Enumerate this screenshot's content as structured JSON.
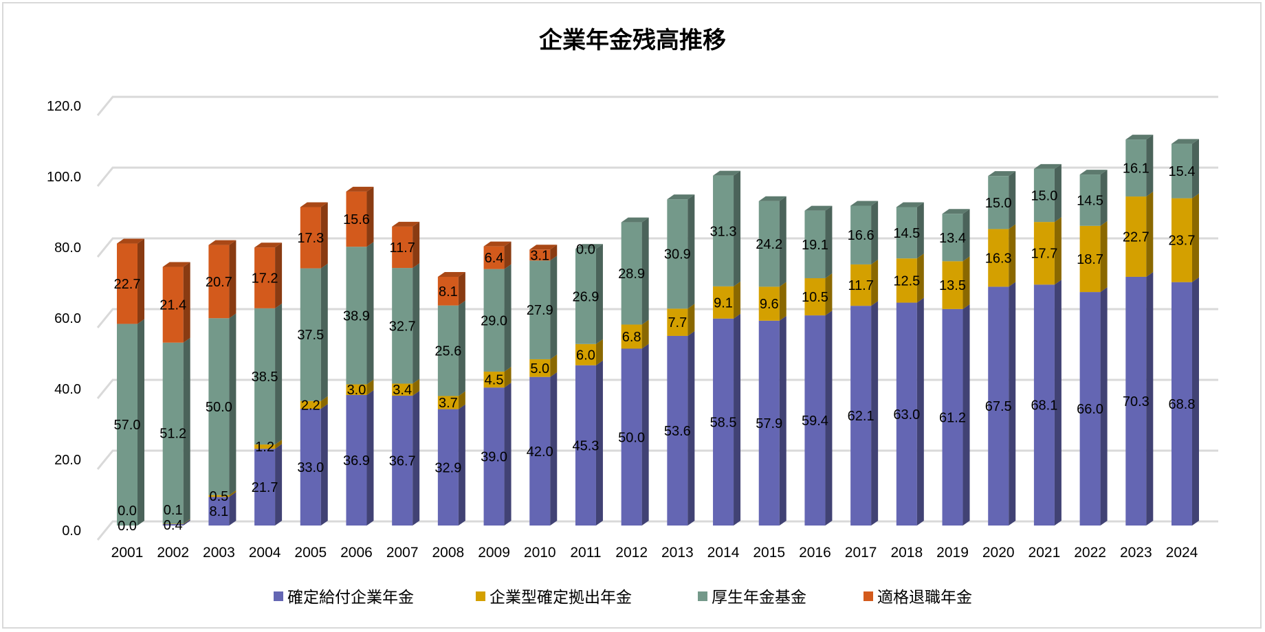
{
  "chart_data": {
    "type": "bar",
    "stacked": true,
    "title": "企業年金残高推移",
    "xlabel": "",
    "ylabel": "",
    "ylim": [
      0,
      120
    ],
    "yticks": [
      "0.0",
      "20.0",
      "40.0",
      "60.0",
      "80.0",
      "100.0",
      "120.0"
    ],
    "grid": true,
    "legend_position": "bottom",
    "categories": [
      "2001",
      "2002",
      "2003",
      "2004",
      "2005",
      "2006",
      "2007",
      "2008",
      "2009",
      "2010",
      "2011",
      "2012",
      "2013",
      "2014",
      "2015",
      "2016",
      "2017",
      "2018",
      "2019",
      "2020",
      "2021",
      "2022",
      "2023",
      "2024"
    ],
    "series": [
      {
        "name": "確定給付企業年金",
        "color": "#6466b3",
        "values": [
          0.0,
          0.4,
          8.1,
          21.7,
          33.0,
          36.9,
          36.7,
          32.9,
          39.0,
          42.0,
          45.3,
          50.0,
          53.6,
          58.5,
          57.9,
          59.4,
          62.1,
          63.0,
          61.2,
          67.5,
          68.1,
          66.0,
          70.3,
          68.8
        ]
      },
      {
        "name": "企業型確定拠出年金",
        "color": "#d4a000",
        "values": [
          0.0,
          0.1,
          0.5,
          1.2,
          2.2,
          3.0,
          3.4,
          3.7,
          4.5,
          5.0,
          6.0,
          6.8,
          7.7,
          9.1,
          9.6,
          10.5,
          11.7,
          12.5,
          13.5,
          16.3,
          17.7,
          18.7,
          22.7,
          23.7
        ]
      },
      {
        "name": "厚生年金基金",
        "color": "#74998a",
        "values": [
          57.0,
          51.2,
          50.0,
          38.5,
          37.5,
          38.9,
          32.7,
          25.6,
          29.0,
          27.9,
          26.9,
          28.9,
          30.9,
          31.3,
          24.2,
          19.1,
          16.6,
          14.5,
          13.4,
          15.0,
          15.0,
          14.5,
          16.1,
          15.4
        ]
      },
      {
        "name": "適格退職年金",
        "color": "#d35a1c",
        "values": [
          22.7,
          21.4,
          20.7,
          17.2,
          17.3,
          15.6,
          11.7,
          8.1,
          6.4,
          3.1,
          0.0,
          null,
          null,
          null,
          null,
          null,
          null,
          null,
          null,
          null,
          null,
          null,
          null,
          null
        ]
      }
    ]
  }
}
